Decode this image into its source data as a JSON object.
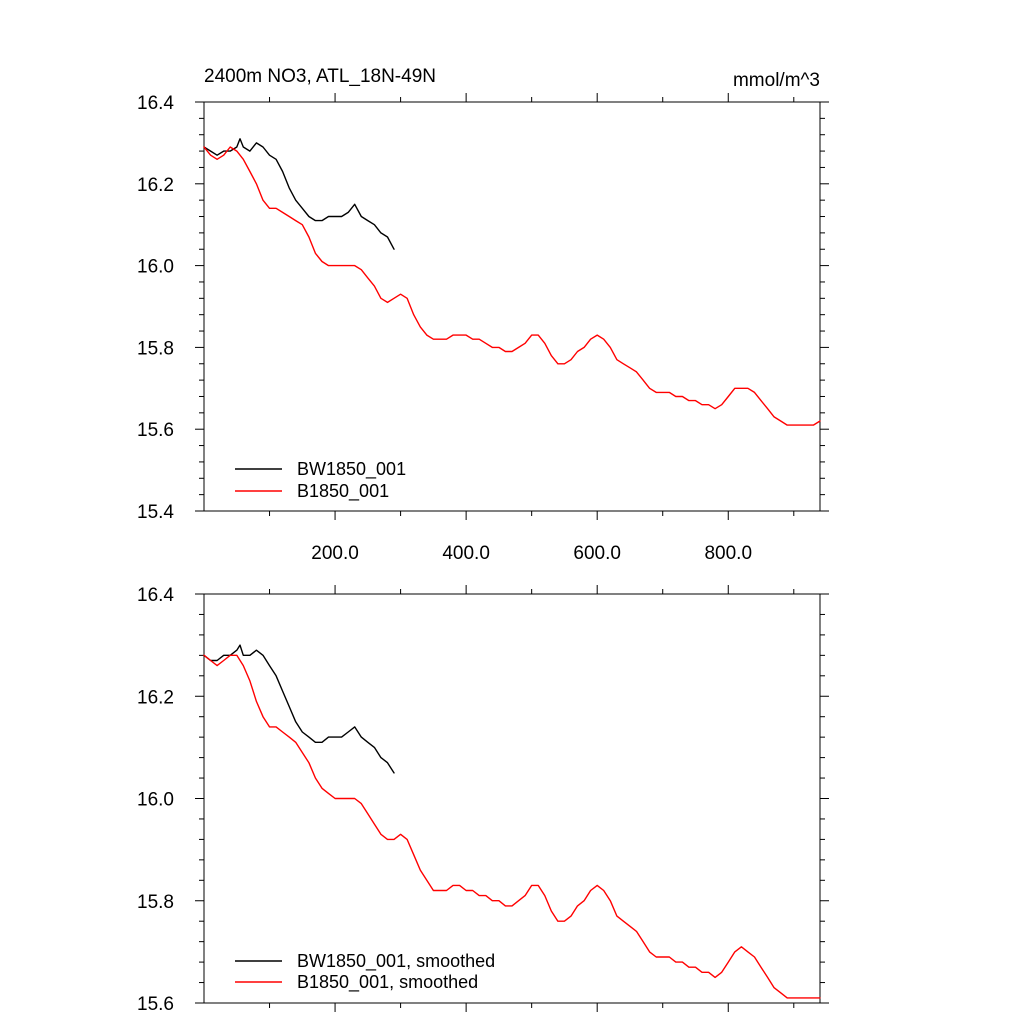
{
  "chart_data": [
    {
      "type": "line",
      "title": "2400m NO3, ATL_18N-49N",
      "units": "mmol/m^3",
      "xlim": [
        0,
        940
      ],
      "ylim": [
        15.4,
        16.4
      ],
      "xticks": [
        200,
        400,
        600,
        800
      ],
      "xtick_labels": [
        "200.0",
        "400.0",
        "600.0",
        "800.0"
      ],
      "yticks": [
        15.4,
        15.6,
        15.8,
        16.0,
        16.2,
        16.4
      ],
      "ytick_labels": [
        "15.4",
        "15.6",
        "15.8",
        "16.0",
        "16.2",
        "16.4"
      ],
      "legend_position": "bottom-left",
      "series": [
        {
          "name": "BW1850_001",
          "color": "#000000",
          "x": [
            0,
            10,
            20,
            30,
            40,
            50,
            55,
            60,
            70,
            80,
            90,
            100,
            110,
            120,
            130,
            140,
            150,
            160,
            170,
            180,
            190,
            200,
            210,
            220,
            230,
            240,
            250,
            260,
            270,
            280,
            290
          ],
          "y": [
            16.29,
            16.28,
            16.27,
            16.28,
            16.28,
            16.29,
            16.31,
            16.29,
            16.28,
            16.3,
            16.29,
            16.27,
            16.26,
            16.23,
            16.19,
            16.16,
            16.14,
            16.12,
            16.11,
            16.11,
            16.12,
            16.12,
            16.12,
            16.13,
            16.15,
            16.12,
            16.11,
            16.1,
            16.08,
            16.07,
            16.04
          ]
        },
        {
          "name": "B1850_001",
          "color": "#ff0000",
          "x": [
            0,
            10,
            20,
            30,
            40,
            50,
            60,
            70,
            80,
            90,
            100,
            110,
            120,
            130,
            140,
            150,
            160,
            170,
            180,
            190,
            200,
            210,
            220,
            230,
            240,
            250,
            260,
            270,
            280,
            290,
            300,
            310,
            320,
            330,
            340,
            350,
            360,
            370,
            380,
            390,
            400,
            410,
            420,
            430,
            440,
            450,
            460,
            470,
            480,
            490,
            500,
            510,
            520,
            530,
            540,
            550,
            560,
            570,
            580,
            590,
            600,
            610,
            620,
            630,
            640,
            650,
            660,
            670,
            680,
            690,
            700,
            710,
            720,
            730,
            740,
            750,
            760,
            770,
            780,
            790,
            800,
            810,
            820,
            830,
            840,
            850,
            860,
            870,
            880,
            890,
            900,
            910,
            920,
            930,
            940
          ],
          "y": [
            16.29,
            16.27,
            16.26,
            16.27,
            16.29,
            16.28,
            16.26,
            16.23,
            16.2,
            16.16,
            16.14,
            16.14,
            16.13,
            16.12,
            16.11,
            16.1,
            16.07,
            16.03,
            16.01,
            16.0,
            16.0,
            16.0,
            16.0,
            16.0,
            15.99,
            15.97,
            15.95,
            15.92,
            15.91,
            15.92,
            15.93,
            15.92,
            15.88,
            15.85,
            15.83,
            15.82,
            15.82,
            15.82,
            15.83,
            15.83,
            15.83,
            15.82,
            15.82,
            15.81,
            15.8,
            15.8,
            15.79,
            15.79,
            15.8,
            15.81,
            15.83,
            15.83,
            15.81,
            15.78,
            15.76,
            15.76,
            15.77,
            15.79,
            15.8,
            15.82,
            15.83,
            15.82,
            15.8,
            15.77,
            15.76,
            15.75,
            15.74,
            15.72,
            15.7,
            15.69,
            15.69,
            15.69,
            15.68,
            15.68,
            15.67,
            15.67,
            15.66,
            15.66,
            15.65,
            15.66,
            15.68,
            15.7,
            15.7,
            15.7,
            15.69,
            15.67,
            15.65,
            15.63,
            15.62,
            15.61,
            15.61,
            15.61,
            15.61,
            15.61,
            15.62
          ]
        }
      ]
    },
    {
      "type": "line",
      "xlim": [
        0,
        940
      ],
      "ylim": [
        15.6,
        16.4
      ],
      "xticks": [
        200,
        400,
        600,
        800
      ],
      "yticks": [
        15.6,
        15.8,
        16.0,
        16.2,
        16.4
      ],
      "ytick_labels": [
        "15.6",
        "15.8",
        "16.0",
        "16.2",
        "16.4"
      ],
      "legend_position": "bottom-left",
      "series": [
        {
          "name": "BW1850_001, smoothed",
          "color": "#000000",
          "x": [
            0,
            10,
            20,
            30,
            40,
            50,
            55,
            60,
            70,
            80,
            90,
            100,
            110,
            120,
            130,
            140,
            150,
            160,
            170,
            180,
            190,
            200,
            210,
            220,
            230,
            240,
            250,
            260,
            270,
            280,
            290
          ],
          "y": [
            16.28,
            16.27,
            16.27,
            16.28,
            16.28,
            16.29,
            16.3,
            16.28,
            16.28,
            16.29,
            16.28,
            16.26,
            16.24,
            16.21,
            16.18,
            16.15,
            16.13,
            16.12,
            16.11,
            16.11,
            16.12,
            16.12,
            16.12,
            16.13,
            16.14,
            16.12,
            16.11,
            16.1,
            16.08,
            16.07,
            16.05
          ]
        },
        {
          "name": "B1850_001, smoothed",
          "color": "#ff0000",
          "x": [
            0,
            10,
            20,
            30,
            40,
            50,
            60,
            70,
            80,
            90,
            100,
            110,
            120,
            130,
            140,
            150,
            160,
            170,
            180,
            190,
            200,
            210,
            220,
            230,
            240,
            250,
            260,
            270,
            280,
            290,
            300,
            310,
            320,
            330,
            340,
            350,
            360,
            370,
            380,
            390,
            400,
            410,
            420,
            430,
            440,
            450,
            460,
            470,
            480,
            490,
            500,
            510,
            520,
            530,
            540,
            550,
            560,
            570,
            580,
            590,
            600,
            610,
            620,
            630,
            640,
            650,
            660,
            670,
            680,
            690,
            700,
            710,
            720,
            730,
            740,
            750,
            760,
            770,
            780,
            790,
            800,
            810,
            820,
            830,
            840,
            850,
            860,
            870,
            880,
            890,
            900,
            910,
            920,
            930,
            940
          ],
          "y": [
            16.28,
            16.27,
            16.26,
            16.27,
            16.28,
            16.28,
            16.26,
            16.23,
            16.19,
            16.16,
            16.14,
            16.14,
            16.13,
            16.12,
            16.11,
            16.09,
            16.07,
            16.04,
            16.02,
            16.01,
            16.0,
            16.0,
            16.0,
            16.0,
            15.99,
            15.97,
            15.95,
            15.93,
            15.92,
            15.92,
            15.93,
            15.92,
            15.89,
            15.86,
            15.84,
            15.82,
            15.82,
            15.82,
            15.83,
            15.83,
            15.82,
            15.82,
            15.81,
            15.81,
            15.8,
            15.8,
            15.79,
            15.79,
            15.8,
            15.81,
            15.83,
            15.83,
            15.81,
            15.78,
            15.76,
            15.76,
            15.77,
            15.79,
            15.8,
            15.82,
            15.83,
            15.82,
            15.8,
            15.77,
            15.76,
            15.75,
            15.74,
            15.72,
            15.7,
            15.69,
            15.69,
            15.69,
            15.68,
            15.68,
            15.67,
            15.67,
            15.66,
            15.66,
            15.65,
            15.66,
            15.68,
            15.7,
            15.71,
            15.7,
            15.69,
            15.67,
            15.65,
            15.63,
            15.62,
            15.61,
            15.61,
            15.61,
            15.61,
            15.61,
            15.61
          ]
        }
      ]
    }
  ]
}
